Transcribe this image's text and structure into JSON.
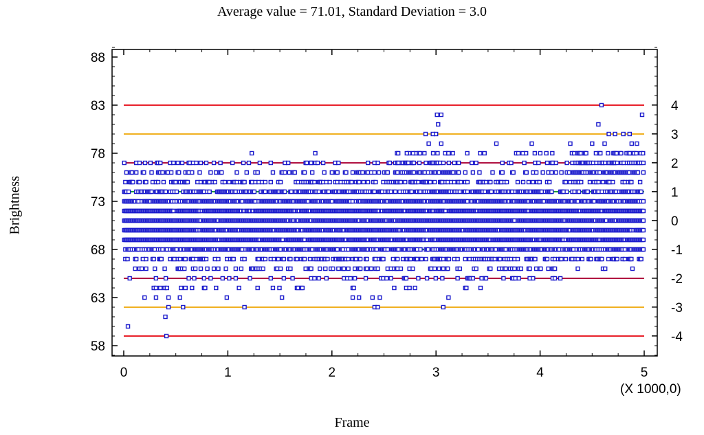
{
  "chart_data": {
    "type": "scatter",
    "title": "Average value = 71.01, Standard Deviation = 3.0",
    "xlabel": "Frame",
    "ylabel": "Brightness",
    "x_multiplier_note": "(X 1000,0)",
    "xlim": [
      0,
      5
    ],
    "ylim": [
      57,
      89
    ],
    "x_ticks": [
      "0",
      "1",
      "2",
      "3",
      "4",
      "5"
    ],
    "y_ticks": [
      "58",
      "63",
      "68",
      "73",
      "78",
      "83",
      "88"
    ],
    "sigma_ticks": [
      "4",
      "3",
      "2",
      "1",
      "0",
      "-1",
      "-2",
      "-3",
      "-4"
    ],
    "mean": 71.01,
    "std_dev": 3.0,
    "control_lines": [
      {
        "name": "+4 sigma",
        "value": 83.0,
        "color": "#e8202a"
      },
      {
        "name": "+3 sigma",
        "value": 80.0,
        "color": "#f0b020"
      },
      {
        "name": "+2 sigma",
        "value": 77.0,
        "color": "#b01040"
      },
      {
        "name": "+1 sigma",
        "value": 74.0,
        "color": "#1a9a3a"
      },
      {
        "name": "-1 sigma",
        "value": 68.0,
        "color": "#1a9a3a"
      },
      {
        "name": "-2 sigma",
        "value": 65.0,
        "color": "#b01040"
      },
      {
        "name": "-3 sigma",
        "value": 62.0,
        "color": "#f0b020"
      },
      {
        "name": "-4 sigma",
        "value": 59.0,
        "color": "#e8202a"
      }
    ],
    "point_color": "#1a1acc",
    "outliers": [
      {
        "x": 0.04,
        "y": 60
      },
      {
        "x": 0.41,
        "y": 59
      },
      {
        "x": 0.4,
        "y": 61
      },
      {
        "x": 0.43,
        "y": 62
      },
      {
        "x": 0.57,
        "y": 62
      },
      {
        "x": 1.16,
        "y": 62
      },
      {
        "x": 2.41,
        "y": 62
      },
      {
        "x": 2.44,
        "y": 62
      },
      {
        "x": 3.07,
        "y": 62
      },
      {
        "x": 3.12,
        "y": 63
      },
      {
        "x": 0.2,
        "y": 63
      },
      {
        "x": 0.31,
        "y": 63
      },
      {
        "x": 0.43,
        "y": 63
      },
      {
        "x": 0.54,
        "y": 63
      },
      {
        "x": 0.99,
        "y": 63
      },
      {
        "x": 1.52,
        "y": 63
      },
      {
        "x": 2.2,
        "y": 63
      },
      {
        "x": 2.26,
        "y": 63
      },
      {
        "x": 2.39,
        "y": 63
      },
      {
        "x": 2.46,
        "y": 63
      },
      {
        "x": 1.23,
        "y": 78
      },
      {
        "x": 1.84,
        "y": 78
      },
      {
        "x": 1.8,
        "y": 77
      },
      {
        "x": 2.9,
        "y": 80
      },
      {
        "x": 2.93,
        "y": 79
      },
      {
        "x": 2.97,
        "y": 80
      },
      {
        "x": 3.02,
        "y": 81
      },
      {
        "x": 3.01,
        "y": 82
      },
      {
        "x": 3.05,
        "y": 82
      },
      {
        "x": 3.0,
        "y": 80
      },
      {
        "x": 3.05,
        "y": 79
      },
      {
        "x": 3.12,
        "y": 78
      },
      {
        "x": 2.72,
        "y": 78
      },
      {
        "x": 2.78,
        "y": 78
      },
      {
        "x": 3.3,
        "y": 78
      },
      {
        "x": 3.58,
        "y": 79
      },
      {
        "x": 3.92,
        "y": 79
      },
      {
        "x": 4.06,
        "y": 78
      },
      {
        "x": 4.29,
        "y": 79
      },
      {
        "x": 4.59,
        "y": 83
      },
      {
        "x": 4.56,
        "y": 81
      },
      {
        "x": 4.66,
        "y": 80
      },
      {
        "x": 4.72,
        "y": 80
      },
      {
        "x": 4.8,
        "y": 80
      },
      {
        "x": 4.86,
        "y": 80
      },
      {
        "x": 4.98,
        "y": 82
      },
      {
        "x": 4.62,
        "y": 79
      },
      {
        "x": 4.88,
        "y": 79
      },
      {
        "x": 4.93,
        "y": 79
      },
      {
        "x": 4.5,
        "y": 79
      }
    ]
  }
}
